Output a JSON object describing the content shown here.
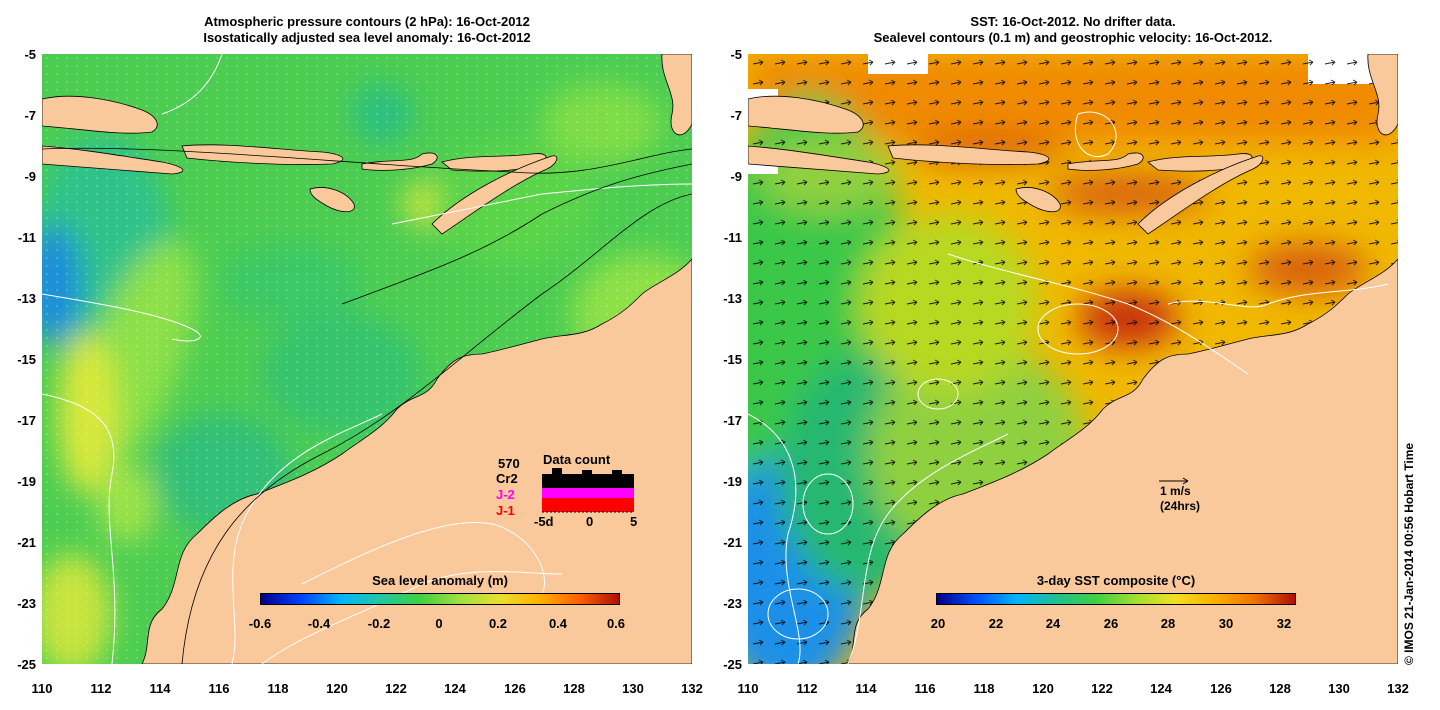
{
  "left_panel": {
    "title_line1": "Atmospheric pressure contours (2 hPa): 16-Oct-2012",
    "title_line2": "Isostatically adjusted sea level anomaly: 16-Oct-2012",
    "colorbar": {
      "title": "Sea level anomaly (m)",
      "range": [
        -0.6,
        0.6
      ],
      "tick_labels": [
        "-0.6",
        "-0.4",
        "-0.2",
        "0",
        "0.2",
        "0.4",
        "0.6"
      ]
    },
    "data_count": {
      "title": "Data count",
      "total": "570",
      "missions": [
        {
          "label": "Cr2",
          "color": "#000000"
        },
        {
          "label": "J-2",
          "color": "#ff00ff"
        },
        {
          "label": "J-1",
          "color": "#ff0000"
        }
      ],
      "axis_labels": [
        "-5d",
        "0",
        "5"
      ]
    }
  },
  "right_panel": {
    "title_line1": "SST: 16-Oct-2012. No drifter data.",
    "title_line2": "Sealevel contours (0.1 m) and geostrophic velocity: 16-Oct-2012.",
    "scale_arrow_line1": "1 m/s",
    "scale_arrow_line2": "(24hrs)",
    "colorbar": {
      "title": "3-day SST composite (°C)",
      "range": [
        20,
        32.5
      ],
      "tick_labels": [
        "20",
        "22",
        "24",
        "26",
        "28",
        "30",
        "32"
      ]
    }
  },
  "axes": {
    "lon_labels": [
      "110",
      "112",
      "114",
      "116",
      "118",
      "120",
      "122",
      "124",
      "126",
      "128",
      "130",
      "132"
    ],
    "lat_labels": [
      "-5",
      "-7",
      "-9",
      "-11",
      "-13",
      "-15",
      "-17",
      "-19",
      "-21",
      "-23",
      "-25"
    ]
  },
  "credit": "© IMOS 21-Jan-2014 00:56 Hobart Time",
  "colors": {
    "land": "#f9c89b",
    "sla_mid": "#4fd34c",
    "sst_mid": "#f2b400"
  }
}
